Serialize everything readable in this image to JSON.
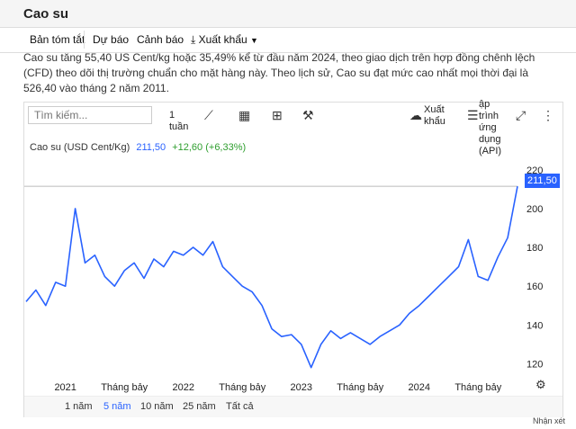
{
  "header": {
    "title": "Cao su"
  },
  "tabs": {
    "summary": "Bản tóm tắt",
    "forecast": "Dự báo",
    "alerts": "Cảnh báo",
    "export": "Xuất khẩu"
  },
  "description": "Cao su tăng 55,40 US Cent/kg hoặc 35,49% kể từ đầu năm 2024, theo giao dịch trên hợp đồng chênh lệch (CFD) theo dõi thị trường chuẩn cho mặt hàng này. Theo lịch sử, Cao su đạt mức cao nhất mọi thời đại là 526,40 vào tháng 2 năm 2011.",
  "toolbar": {
    "search_placeholder": "Tìm kiếm...",
    "interval": "1\ntuần",
    "export": "Xuất\nkhẩu",
    "api": "ập\ntrình\nứng\ndụng\n(API)"
  },
  "legend": {
    "name": "Cao su (USD Cent/Kg)",
    "price": "211,50",
    "change": "+12,60 (+6,33%)"
  },
  "price_tag": "211,50",
  "ranges": [
    "1 năm",
    "5 năm",
    "10 năm",
    "25 năm",
    "Tất cả"
  ],
  "active_range": "5 năm",
  "footnote": "Nhận xét",
  "chart_data": {
    "type": "line",
    "series": [
      {
        "name": "Cao su",
        "color": "#2962ff",
        "points": [
          [
            "2020-09",
            152
          ],
          [
            "2020-10",
            158
          ],
          [
            "2020-11",
            150
          ],
          [
            "2020-12",
            162
          ],
          [
            "2021-01",
            160
          ],
          [
            "2021-02",
            200
          ],
          [
            "2021-03",
            172
          ],
          [
            "2021-04",
            176
          ],
          [
            "2021-05",
            165
          ],
          [
            "2021-06",
            160
          ],
          [
            "2021-07",
            168
          ],
          [
            "2021-08",
            172
          ],
          [
            "2021-09",
            164
          ],
          [
            "2021-10",
            174
          ],
          [
            "2021-11",
            170
          ],
          [
            "2021-12",
            178
          ],
          [
            "2022-01",
            176
          ],
          [
            "2022-02",
            180
          ],
          [
            "2022-03",
            176
          ],
          [
            "2022-04",
            183
          ],
          [
            "2022-05",
            170
          ],
          [
            "2022-06",
            165
          ],
          [
            "2022-07",
            160
          ],
          [
            "2022-08",
            157
          ],
          [
            "2022-09",
            150
          ],
          [
            "2022-10",
            138
          ],
          [
            "2022-11",
            134
          ],
          [
            "2022-12",
            135
          ],
          [
            "2023-01",
            130
          ],
          [
            "2023-02",
            118
          ],
          [
            "2023-03",
            130
          ],
          [
            "2023-04",
            137
          ],
          [
            "2023-05",
            133
          ],
          [
            "2023-06",
            136
          ],
          [
            "2023-07",
            133
          ],
          [
            "2023-08",
            130
          ],
          [
            "2023-09",
            134
          ],
          [
            "2023-10",
            137
          ],
          [
            "2023-11",
            140
          ],
          [
            "2023-12",
            146
          ],
          [
            "2024-01",
            150
          ],
          [
            "2024-02",
            155
          ],
          [
            "2024-03",
            160
          ],
          [
            "2024-04",
            165
          ],
          [
            "2024-05",
            170
          ],
          [
            "2024-06",
            184
          ],
          [
            "2024-07",
            165
          ],
          [
            "2024-08",
            163
          ],
          [
            "2024-09",
            175
          ],
          [
            "2024-10",
            185
          ],
          [
            "2024-11",
            211.5
          ]
        ]
      }
    ],
    "y_ticks": [
      120,
      140,
      160,
      180,
      200,
      220
    ],
    "ylim": [
      110,
      225
    ],
    "x_ticks": [
      "2021",
      "Tháng bảy",
      "2022",
      "Tháng bảy",
      "2023",
      "Tháng bảy",
      "2024",
      "Tháng bảy"
    ],
    "reference_line": 211.5
  }
}
